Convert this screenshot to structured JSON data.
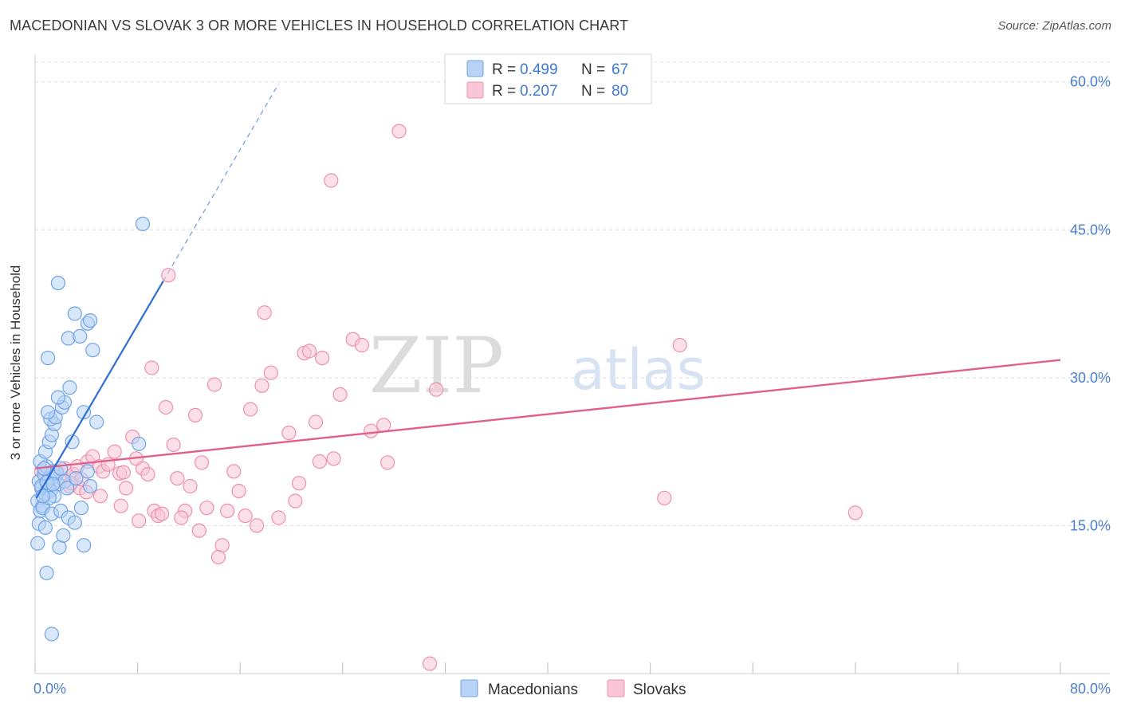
{
  "title": "MACEDONIAN VS SLOVAK 3 OR MORE VEHICLES IN HOUSEHOLD CORRELATION CHART",
  "source": "Source: ZipAtlas.com",
  "watermark": {
    "zip": "ZIP",
    "atlas": "atlas"
  },
  "chart_data": {
    "type": "scatter",
    "title": "MACEDONIAN VS SLOVAK 3 OR MORE VEHICLES IN HOUSEHOLD CORRELATION CHART",
    "xlabel": "",
    "ylabel": "3 or more Vehicles in Household",
    "xlim": [
      0,
      80
    ],
    "ylim": [
      0,
      62
    ],
    "x_tick_labels": [
      "0.0%",
      "80.0%"
    ],
    "y_ticks": [
      15,
      30,
      45,
      60
    ],
    "y_tick_labels": [
      "15.0%",
      "30.0%",
      "45.0%",
      "60.0%"
    ],
    "legend_position": "top-center",
    "series": [
      {
        "name": "Macedonians",
        "color": "#6fa3e8",
        "fill": "#b8d3f5",
        "line_color": "#2f6fd1",
        "R": "0.499",
        "N": "67",
        "trend": {
          "x0": 0.1,
          "y0": 17.8,
          "x1": 10.0,
          "y1": 39.8,
          "dash_x1": 19.0,
          "dash_y1": 59.8
        },
        "points": [
          [
            0.3,
            19.5
          ],
          [
            0.5,
            18.8
          ],
          [
            0.7,
            20.2
          ],
          [
            0.9,
            21.0
          ],
          [
            1.1,
            19.8
          ],
          [
            1.4,
            20.5
          ],
          [
            1.6,
            20.0
          ],
          [
            1.8,
            19.2
          ],
          [
            0.2,
            17.5
          ],
          [
            0.4,
            16.5
          ],
          [
            0.6,
            17.0
          ],
          [
            0.8,
            18.2
          ],
          [
            1.0,
            19.0
          ],
          [
            1.2,
            18.5
          ],
          [
            1.5,
            18.0
          ],
          [
            1.7,
            20.3
          ],
          [
            0.3,
            15.2
          ],
          [
            0.6,
            16.8
          ],
          [
            0.8,
            14.8
          ],
          [
            1.3,
            16.2
          ],
          [
            2.0,
            16.5
          ],
          [
            2.6,
            15.8
          ],
          [
            3.1,
            15.3
          ],
          [
            3.6,
            16.8
          ],
          [
            0.2,
            13.2
          ],
          [
            1.9,
            12.8
          ],
          [
            2.2,
            14.0
          ],
          [
            3.8,
            13.0
          ],
          [
            0.9,
            10.2
          ],
          [
            1.3,
            4.0
          ],
          [
            0.4,
            21.5
          ],
          [
            0.8,
            22.5
          ],
          [
            1.1,
            23.5
          ],
          [
            1.3,
            24.2
          ],
          [
            1.5,
            25.3
          ],
          [
            1.2,
            25.8
          ],
          [
            1.6,
            26.0
          ],
          [
            1.0,
            26.5
          ],
          [
            2.1,
            27.0
          ],
          [
            2.3,
            27.5
          ],
          [
            1.8,
            28.0
          ],
          [
            2.7,
            29.0
          ],
          [
            3.8,
            26.5
          ],
          [
            4.1,
            20.5
          ],
          [
            4.3,
            19.0
          ],
          [
            4.8,
            25.5
          ],
          [
            1.0,
            32.0
          ],
          [
            2.6,
            34.0
          ],
          [
            3.5,
            34.2
          ],
          [
            4.5,
            32.8
          ],
          [
            3.1,
            36.5
          ],
          [
            4.1,
            35.5
          ],
          [
            4.3,
            35.8
          ],
          [
            1.8,
            39.6
          ],
          [
            8.1,
            23.3
          ],
          [
            8.4,
            45.6
          ],
          [
            2.9,
            23.5
          ],
          [
            2.0,
            20.8
          ],
          [
            2.3,
            19.5
          ],
          [
            0.5,
            19.0
          ],
          [
            1.1,
            17.8
          ],
          [
            0.9,
            19.4
          ],
          [
            0.7,
            20.8
          ],
          [
            1.4,
            19.2
          ],
          [
            2.5,
            18.8
          ],
          [
            3.2,
            19.8
          ],
          [
            0.6,
            18.0
          ]
        ]
      },
      {
        "name": "Slovaks",
        "color": "#ee8fae",
        "fill": "#f8c6d6",
        "line_color": "#e0608a",
        "R": "0.207",
        "N": "80",
        "trend": {
          "x0": 0,
          "y0": 20.8,
          "x1": 80,
          "y1": 31.8
        },
        "points": [
          [
            0.5,
            20.5
          ],
          [
            0.8,
            20.0
          ],
          [
            1.1,
            19.8
          ],
          [
            1.4,
            20.3
          ],
          [
            1.7,
            20.5
          ],
          [
            2.0,
            19.5
          ],
          [
            2.3,
            20.8
          ],
          [
            2.7,
            19.0
          ],
          [
            3.0,
            20.2
          ],
          [
            3.3,
            21.0
          ],
          [
            3.5,
            18.8
          ],
          [
            4.1,
            21.5
          ],
          [
            4.5,
            22.0
          ],
          [
            5.0,
            21.0
          ],
          [
            5.3,
            20.5
          ],
          [
            5.7,
            21.2
          ],
          [
            6.2,
            22.5
          ],
          [
            6.6,
            20.3
          ],
          [
            7.1,
            18.8
          ],
          [
            7.6,
            24.0
          ],
          [
            7.9,
            21.8
          ],
          [
            8.4,
            20.8
          ],
          [
            8.8,
            20.2
          ],
          [
            9.3,
            16.5
          ],
          [
            9.6,
            16.0
          ],
          [
            10.2,
            27.0
          ],
          [
            10.8,
            23.2
          ],
          [
            11.1,
            19.8
          ],
          [
            11.7,
            16.5
          ],
          [
            12.1,
            19.0
          ],
          [
            12.5,
            26.2
          ],
          [
            13.0,
            21.4
          ],
          [
            13.4,
            16.8
          ],
          [
            14.0,
            29.3
          ],
          [
            14.6,
            13.0
          ],
          [
            15.0,
            16.5
          ],
          [
            15.5,
            20.5
          ],
          [
            15.9,
            18.5
          ],
          [
            16.4,
            16.0
          ],
          [
            16.8,
            26.8
          ],
          [
            17.3,
            15.0
          ],
          [
            17.7,
            29.2
          ],
          [
            17.9,
            36.6
          ],
          [
            18.4,
            30.5
          ],
          [
            19.0,
            15.8
          ],
          [
            19.8,
            24.4
          ],
          [
            20.3,
            17.5
          ],
          [
            20.6,
            19.3
          ],
          [
            21.0,
            32.5
          ],
          [
            21.4,
            32.7
          ],
          [
            21.9,
            25.5
          ],
          [
            22.2,
            21.5
          ],
          [
            22.4,
            32.0
          ],
          [
            23.3,
            21.8
          ],
          [
            23.8,
            28.3
          ],
          [
            24.8,
            33.9
          ],
          [
            25.5,
            33.3
          ],
          [
            26.2,
            24.6
          ],
          [
            27.2,
            25.2
          ],
          [
            27.5,
            21.4
          ],
          [
            28.4,
            55.0
          ],
          [
            23.1,
            50.0
          ],
          [
            31.3,
            28.8
          ],
          [
            30.8,
            1.0
          ],
          [
            10.4,
            40.4
          ],
          [
            9.1,
            31.0
          ],
          [
            11.4,
            15.8
          ],
          [
            12.8,
            14.5
          ],
          [
            14.3,
            11.8
          ],
          [
            8.1,
            15.5
          ],
          [
            6.7,
            17.0
          ],
          [
            5.1,
            18.0
          ],
          [
            4.0,
            18.4
          ],
          [
            3.6,
            19.7
          ],
          [
            49.1,
            17.8
          ],
          [
            50.3,
            33.3
          ],
          [
            64.0,
            16.3
          ],
          [
            2.8,
            19.3
          ],
          [
            6.9,
            20.4
          ],
          [
            9.9,
            16.2
          ]
        ]
      }
    ]
  }
}
